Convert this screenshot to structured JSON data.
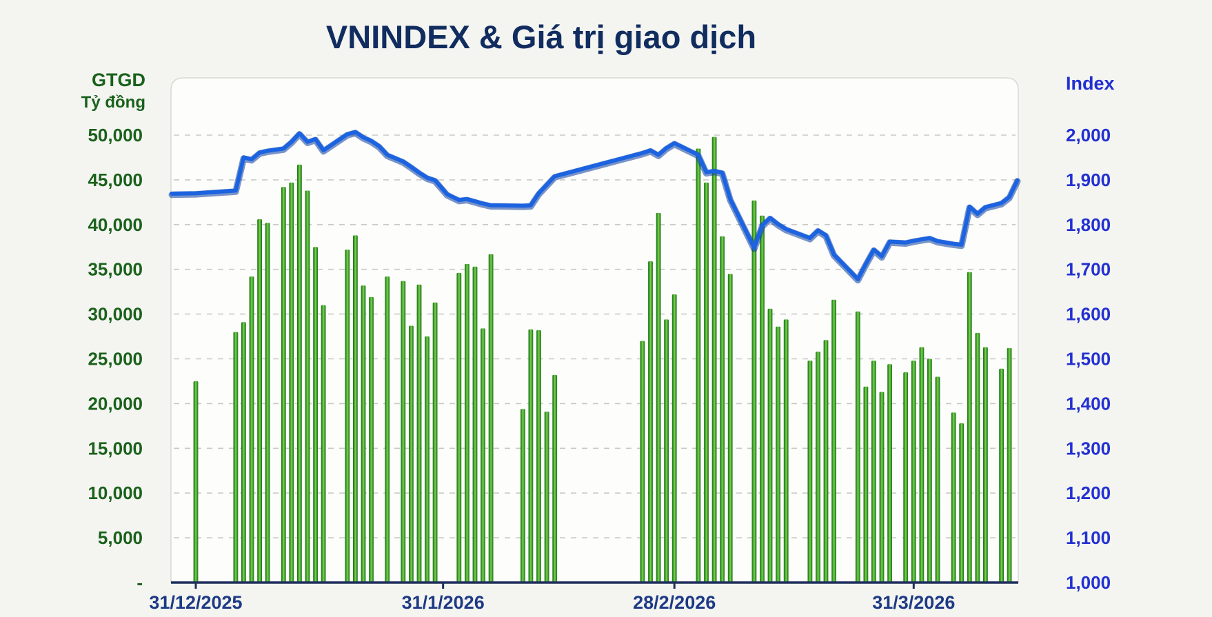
{
  "title": "VNINDEX & Giá trị giao dịch",
  "legend": {
    "bar_label": "GTGD",
    "line_label": "VNINDEX"
  },
  "left_axis": {
    "title": "GTGD",
    "subtitle": "Tỷ đồng",
    "tick_labels": [
      "50,000",
      "45,000",
      "40,000",
      "35,000",
      "30,000",
      "25,000",
      "20,000",
      "15,000",
      "10,000",
      "5,000",
      "-"
    ]
  },
  "right_axis": {
    "title": "Index",
    "tick_labels": [
      "2,000",
      "1,900",
      "1,800",
      "1,700",
      "1,600",
      "1,500",
      "1,400",
      "1,300",
      "1,200",
      "1,100",
      "1,000"
    ]
  },
  "x_axis": {
    "tick_labels": [
      {
        "label": "31/12/2025",
        "day": 0
      },
      {
        "label": "31/1/2026",
        "day": 31
      },
      {
        "label": "28/2/2026",
        "day": 60
      },
      {
        "label": "31/3/2026",
        "day": 90
      }
    ]
  },
  "colors": {
    "bar_dark": "#1d7018",
    "bar_mid": "#3fa32c",
    "bar_light": "#86d154",
    "line_main": "#1b63e0",
    "line_shadow": "#0c3e9e",
    "grid": "#c9c9c6",
    "axis": "#1f2f5c",
    "left_text": "#1a611b",
    "right_text": "#2230d2",
    "x_text": "#1e3a85"
  },
  "chart_data": {
    "type": "bar+line",
    "title": "VNINDEX & Giá trị giao dịch",
    "x_unit": "calendar days since 31/12/2025 (trading days only)",
    "grid": "horizontal dashed",
    "legend_position": "top-center",
    "bar_series": {
      "name": "GTGD",
      "unit": "Tỷ đồng",
      "axis": "left",
      "ylim": [
        0,
        50000
      ],
      "points": [
        [
          0,
          22500
        ],
        [
          5,
          28000
        ],
        [
          6,
          29100
        ],
        [
          7,
          34200
        ],
        [
          8,
          40600
        ],
        [
          9,
          40200
        ],
        [
          11,
          44200
        ],
        [
          12,
          44700
        ],
        [
          13,
          46700
        ],
        [
          14,
          43800
        ],
        [
          15,
          37500
        ],
        [
          16,
          31000
        ],
        [
          19,
          37200
        ],
        [
          20,
          38800
        ],
        [
          21,
          33200
        ],
        [
          22,
          31900
        ],
        [
          24,
          34200
        ],
        [
          26,
          33700
        ],
        [
          27,
          28700
        ],
        [
          28,
          33300
        ],
        [
          29,
          27500
        ],
        [
          30,
          31300
        ],
        [
          33,
          34600
        ],
        [
          34,
          35600
        ],
        [
          35,
          35300
        ],
        [
          36,
          28400
        ],
        [
          37,
          36700
        ],
        [
          41,
          19400
        ],
        [
          42,
          28300
        ],
        [
          43,
          28200
        ],
        [
          44,
          19100
        ],
        [
          45,
          23200
        ],
        [
          56,
          27000
        ],
        [
          57,
          35900
        ],
        [
          58,
          41300
        ],
        [
          59,
          29400
        ],
        [
          60,
          32200
        ],
        [
          63,
          48500
        ],
        [
          64,
          44700
        ],
        [
          65,
          49800
        ],
        [
          66,
          38700
        ],
        [
          67,
          34500
        ],
        [
          70,
          42700
        ],
        [
          71,
          41000
        ],
        [
          72,
          30600
        ],
        [
          73,
          28600
        ],
        [
          74,
          29400
        ],
        [
          77,
          24800
        ],
        [
          78,
          25800
        ],
        [
          79,
          27100
        ],
        [
          80,
          31600
        ],
        [
          83,
          30300
        ],
        [
          84,
          21900
        ],
        [
          85,
          24800
        ],
        [
          86,
          21300
        ],
        [
          87,
          24400
        ],
        [
          89,
          23500
        ],
        [
          90,
          24800
        ],
        [
          91,
          26300
        ],
        [
          92,
          25000
        ],
        [
          93,
          23000
        ],
        [
          95,
          19000
        ],
        [
          96,
          17800
        ],
        [
          97,
          34700
        ],
        [
          98,
          27900
        ],
        [
          99,
          26300
        ],
        [
          101,
          23900
        ],
        [
          102,
          26200
        ]
      ]
    },
    "line_series": {
      "name": "VNINDEX",
      "axis": "right",
      "ylim": [
        1000,
        2000
      ],
      "points": [
        [
          -3,
          1869
        ],
        [
          0,
          1870
        ],
        [
          5,
          1876
        ],
        [
          6,
          1950
        ],
        [
          7,
          1946
        ],
        [
          8,
          1961
        ],
        [
          9,
          1965
        ],
        [
          11,
          1970
        ],
        [
          12,
          1985
        ],
        [
          13,
          2004
        ],
        [
          14,
          1985
        ],
        [
          15,
          1991
        ],
        [
          16,
          1966
        ],
        [
          19,
          2002
        ],
        [
          20,
          2007
        ],
        [
          21,
          1995
        ],
        [
          22,
          1987
        ],
        [
          23,
          1975
        ],
        [
          24,
          1956
        ],
        [
          26,
          1941
        ],
        [
          27,
          1929
        ],
        [
          28,
          1916
        ],
        [
          29,
          1905
        ],
        [
          30,
          1899
        ],
        [
          31.5,
          1868
        ],
        [
          33,
          1855
        ],
        [
          34,
          1857
        ],
        [
          35,
          1852
        ],
        [
          36,
          1847
        ],
        [
          37,
          1843
        ],
        [
          38,
          1843
        ],
        [
          41,
          1842
        ],
        [
          42,
          1843
        ],
        [
          43,
          1870
        ],
        [
          44,
          1889
        ],
        [
          45,
          1908
        ],
        [
          56,
          1960
        ],
        [
          57,
          1966
        ],
        [
          58,
          1956
        ],
        [
          59,
          1971
        ],
        [
          60,
          1982
        ],
        [
          63,
          1956
        ],
        [
          64,
          1917
        ],
        [
          65,
          1920
        ],
        [
          66,
          1916
        ],
        [
          67,
          1857
        ],
        [
          70,
          1748
        ],
        [
          71,
          1798
        ],
        [
          72,
          1815
        ],
        [
          73,
          1801
        ],
        [
          74,
          1790
        ],
        [
          77,
          1770
        ],
        [
          78,
          1787
        ],
        [
          79,
          1776
        ],
        [
          80,
          1733
        ],
        [
          83,
          1678
        ],
        [
          84,
          1712
        ],
        [
          85,
          1744
        ],
        [
          86,
          1729
        ],
        [
          87,
          1762
        ],
        [
          89,
          1760
        ],
        [
          90,
          1764
        ],
        [
          91,
          1767
        ],
        [
          92,
          1770
        ],
        [
          93,
          1763
        ],
        [
          95,
          1757
        ],
        [
          96,
          1755
        ],
        [
          97,
          1840
        ],
        [
          98,
          1824
        ],
        [
          99,
          1839
        ],
        [
          101,
          1848
        ],
        [
          102,
          1862
        ],
        [
          103,
          1899
        ]
      ]
    }
  }
}
